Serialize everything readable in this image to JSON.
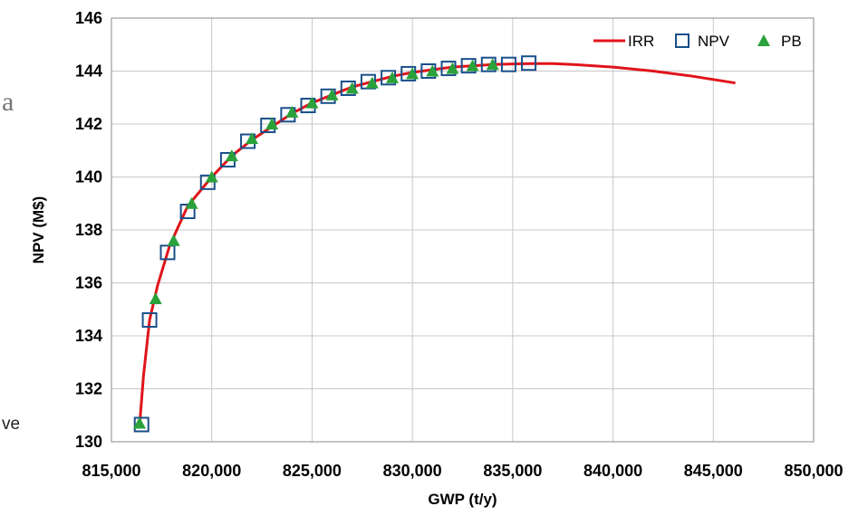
{
  "fragments": {
    "left_a": "a",
    "left_ve": "ve"
  },
  "colors": {
    "irr": "#e0141b",
    "npv": "#1a4f8a",
    "pb": "#2aa13a",
    "grid": "#c8c8c8"
  },
  "chart_data": {
    "type": "line",
    "xlabel": "GWP (t/y)",
    "ylabel": "NPV (M$)",
    "xlim": [
      815000,
      850000
    ],
    "ylim": [
      130,
      146
    ],
    "xticks": [
      815000,
      820000,
      825000,
      830000,
      835000,
      840000,
      845000,
      850000
    ],
    "xtick_labels": [
      "815,000",
      "820,000",
      "825,000",
      "830,000",
      "835,000",
      "840,000",
      "845,000",
      "850,000"
    ],
    "yticks": [
      130,
      132,
      134,
      136,
      138,
      140,
      142,
      144,
      146
    ],
    "ytick_labels": [
      "130",
      "132",
      "134",
      "136",
      "138",
      "140",
      "142",
      "144",
      "146"
    ],
    "grid": true,
    "legend_position": "top-right",
    "series": [
      {
        "name": "IRR",
        "kind": "line",
        "x": [
          816400,
          816600,
          816900,
          817300,
          817900,
          818800,
          820000,
          821000,
          822000,
          823000,
          824000,
          825000,
          826000,
          827000,
          828000,
          829000,
          830000,
          831000,
          832000,
          833000,
          834000,
          835000,
          836000,
          837000,
          838000,
          840000,
          842000,
          844000,
          846100
        ],
        "y": [
          130.6,
          132.5,
          134.6,
          135.9,
          137.4,
          138.9,
          140.0,
          140.8,
          141.4,
          141.9,
          142.4,
          142.8,
          143.1,
          143.4,
          143.6,
          143.8,
          143.95,
          144.05,
          144.15,
          144.2,
          144.25,
          144.27,
          144.28,
          144.28,
          144.25,
          144.15,
          144.0,
          143.8,
          143.55
        ]
      },
      {
        "name": "NPV",
        "kind": "marker-square",
        "x": [
          816500,
          816900,
          817800,
          818800,
          819800,
          820800,
          821800,
          822800,
          823800,
          824800,
          825800,
          826800,
          827800,
          828800,
          829800,
          830800,
          831800,
          832800,
          833800,
          834800,
          835800
        ],
        "y": [
          130.65,
          134.6,
          137.15,
          138.7,
          139.8,
          140.65,
          141.35,
          141.95,
          142.35,
          142.7,
          143.05,
          143.35,
          143.6,
          143.75,
          143.9,
          144.0,
          144.1,
          144.2,
          144.25,
          144.25,
          144.3
        ]
      },
      {
        "name": "PB",
        "kind": "marker-triangle",
        "x": [
          816400,
          817200,
          818100,
          819000,
          820000,
          821000,
          822000,
          823000,
          824000,
          825000,
          826000,
          827000,
          828000,
          829000,
          830000,
          831000,
          832000,
          833000,
          834000
        ],
        "y": [
          130.7,
          135.4,
          137.6,
          139.0,
          140.0,
          140.8,
          141.45,
          142.0,
          142.45,
          142.8,
          143.1,
          143.35,
          143.55,
          143.75,
          143.9,
          144.0,
          144.1,
          144.2,
          144.25
        ]
      }
    ]
  }
}
